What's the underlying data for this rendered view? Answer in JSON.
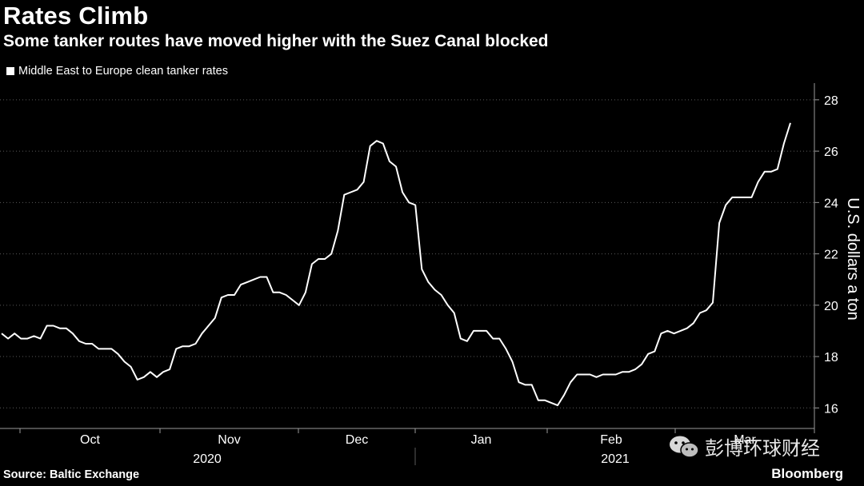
{
  "chart_data": {
    "type": "line",
    "title": "Rates Climb",
    "subtitle": "Some tanker routes have moved higher with the Suez Canal blocked",
    "legend": [
      "Middle East to Europe clean tanker rates"
    ],
    "ylabel": "U.S. dollars a ton",
    "source": "Source: Baltic Exchange",
    "ylim": [
      15.2,
      28.4
    ],
    "yticks": [
      16,
      18,
      20,
      22,
      24,
      26,
      28
    ],
    "month_labels": [
      "Oct",
      "Nov",
      "Dec",
      "Jan",
      "Feb",
      "Mar"
    ],
    "year_labels": [
      "2020",
      "2021"
    ],
    "series": [
      {
        "name": "Middle East to Europe clean tanker rates",
        "color": "#ffffff",
        "values": [
          18.9,
          18.7,
          18.9,
          18.7,
          18.7,
          18.8,
          18.7,
          19.2,
          19.2,
          19.1,
          19.1,
          18.9,
          18.6,
          18.5,
          18.5,
          18.3,
          18.3,
          18.3,
          18.1,
          17.8,
          17.6,
          17.1,
          17.2,
          17.4,
          17.2,
          17.4,
          17.5,
          18.3,
          18.4,
          18.4,
          18.5,
          18.9,
          19.2,
          19.5,
          20.3,
          20.4,
          20.4,
          20.8,
          20.9,
          21.0,
          21.1,
          21.1,
          20.5,
          20.5,
          20.4,
          20.2,
          20.0,
          20.5,
          21.6,
          21.8,
          21.8,
          22.0,
          22.9,
          24.3,
          24.4,
          24.5,
          24.8,
          26.2,
          26.4,
          26.3,
          25.6,
          25.4,
          24.4,
          24.0,
          23.9,
          21.4,
          20.9,
          20.6,
          20.4,
          20.0,
          19.7,
          18.7,
          18.6,
          19.0,
          19.0,
          19.0,
          18.7,
          18.7,
          18.3,
          17.8,
          17.0,
          16.9,
          16.9,
          16.3,
          16.3,
          16.2,
          16.1,
          16.5,
          17.0,
          17.3,
          17.3,
          17.3,
          17.2,
          17.3,
          17.3,
          17.3,
          17.4,
          17.4,
          17.5,
          17.7,
          18.1,
          18.2,
          18.9,
          19.0,
          18.9,
          19.0,
          19.1,
          19.3,
          19.7,
          19.8,
          20.1,
          23.2,
          23.9,
          24.2,
          24.2,
          24.2,
          24.2,
          24.8,
          25.2,
          25.2,
          25.3,
          26.3,
          27.1
        ]
      }
    ]
  },
  "footer": {
    "brand": "Bloomberg",
    "watermark": "彭博环球财经"
  },
  "colors": {
    "background": "#000000",
    "line": "#ffffff",
    "grid": "#5a5a5a",
    "axis": "#9a9a9a"
  }
}
